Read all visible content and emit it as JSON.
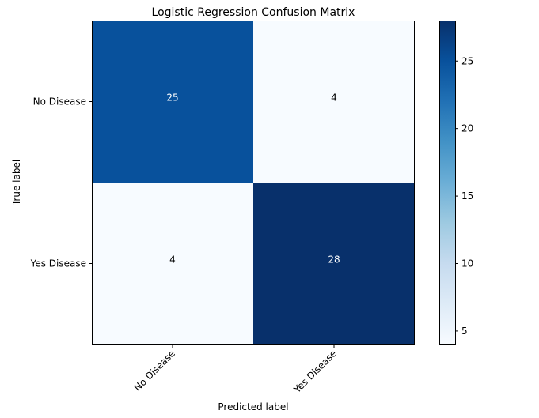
{
  "chart_data": {
    "type": "heatmap",
    "title": "Logistic Regression Confusion Matrix",
    "xlabel": "Predicted label",
    "ylabel": "True label",
    "x_categories": [
      "No Disease",
      "Yes Disease"
    ],
    "y_categories": [
      "No Disease",
      "Yes Disease"
    ],
    "matrix": [
      [
        25,
        4
      ],
      [
        4,
        28
      ]
    ],
    "colormap": "Blues",
    "color_range": [
      4,
      28
    ],
    "colorbar_ticks": [
      5,
      10,
      15,
      20,
      25
    ],
    "colors": {
      "cmap_stops": [
        "#f7fbff",
        "#deebf7",
        "#c6dbef",
        "#9ecae1",
        "#6baed6",
        "#4292c6",
        "#2171b5",
        "#08519c",
        "#08306b"
      ],
      "text_light": "#ffffff",
      "text_dark": "#000000",
      "axis": "#000000"
    }
  }
}
